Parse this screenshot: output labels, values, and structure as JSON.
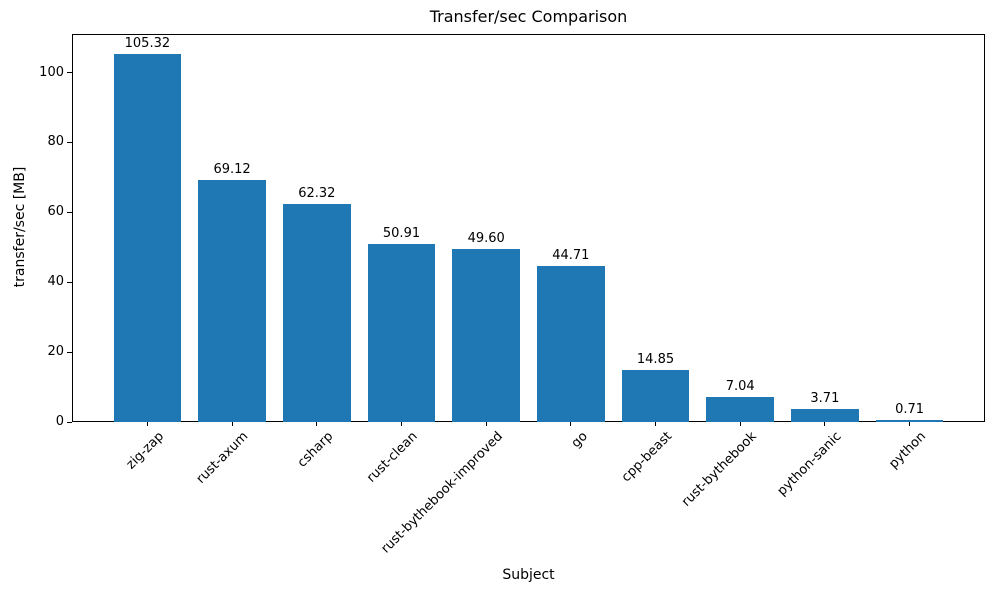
{
  "chart_data": {
    "type": "bar",
    "title": "Transfer/sec Comparison",
    "xlabel": "Subject",
    "ylabel": "transfer/sec [MB]",
    "categories": [
      "zig-zap",
      "rust-axum",
      "csharp",
      "rust-clean",
      "rust-bythebook-improved",
      "go",
      "cpp-beast",
      "rust-bythebook",
      "python-sanic",
      "python"
    ],
    "values": [
      105.32,
      69.12,
      62.32,
      50.91,
      49.6,
      44.71,
      14.85,
      7.04,
      3.71,
      0.71
    ],
    "value_labels": [
      "105.32",
      "69.12",
      "62.32",
      "50.91",
      "49.60",
      "44.71",
      "14.85",
      "7.04",
      "3.71",
      "0.71"
    ],
    "ylim": [
      0,
      111
    ],
    "yticks": [
      0,
      20,
      40,
      60,
      80,
      100
    ],
    "bar_color": "#1f77b4",
    "axis_color": "#000000",
    "grid": false,
    "legend": null
  }
}
